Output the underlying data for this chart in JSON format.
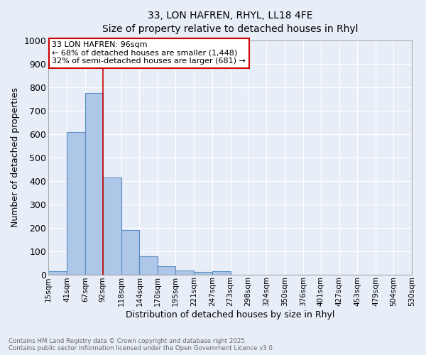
{
  "title_line1": "33, LON HAFREN, RHYL, LL18 4FE",
  "title_line2": "Size of property relative to detached houses in Rhyl",
  "xlabel": "Distribution of detached houses by size in Rhyl",
  "ylabel": "Number of detached properties",
  "bin_labels": [
    "15sqm",
    "41sqm",
    "67sqm",
    "92sqm",
    "118sqm",
    "144sqm",
    "170sqm",
    "195sqm",
    "221sqm",
    "247sqm",
    "273sqm",
    "298sqm",
    "324sqm",
    "350sqm",
    "376sqm",
    "401sqm",
    "427sqm",
    "453sqm",
    "479sqm",
    "504sqm",
    "530sqm"
  ],
  "bar_values": [
    15,
    607,
    775,
    413,
    191,
    76,
    35,
    18,
    10,
    13,
    0,
    0,
    0,
    0,
    0,
    0,
    0,
    0,
    0,
    0,
    0
  ],
  "bar_color": "#aec6e8",
  "bar_edge_color": "#5a8fc2",
  "property_line_x": 92,
  "annotation_title": "33 LON HAFREN: 96sqm",
  "annotation_line1": "← 68% of detached houses are smaller (1,448)",
  "annotation_line2": "32% of semi-detached houses are larger (681) →",
  "annotation_box_color": "#ffffff",
  "annotation_box_edge_color": "#cc0000",
  "ylim": [
    0,
    1000
  ],
  "yticks": [
    0,
    100,
    200,
    300,
    400,
    500,
    600,
    700,
    800,
    900,
    1000
  ],
  "bg_color": "#e8eef8",
  "footer_line1": "Contains HM Land Registry data © Crown copyright and database right 2025.",
  "footer_line2": "Contains public sector information licensed under the Open Government Licence v3.0.",
  "footer_color": "#666666",
  "grid_color": "#ffffff",
  "spine_color": "#aaaaaa"
}
